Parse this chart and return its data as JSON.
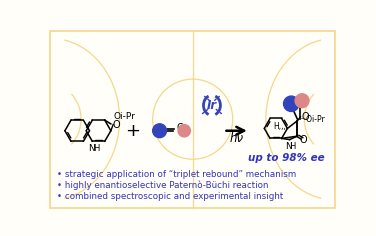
{
  "bg_color": "#fffef8",
  "basketball_color": "#f5d78e",
  "blue_color": "#3344bb",
  "pink_color": "#dd8888",
  "arrow_color": "#111111",
  "text_blue": "#3333bb",
  "bullet_points": [
    "• strategic application of “triplet rebound” mechanism",
    "• highly enantioselective Paternò-Büchi reaction",
    "• combined spectroscopic and experimental insight"
  ],
  "up_to_text": "up to 98% ee",
  "hv_text": "hν",
  "figsize": [
    3.76,
    2.36
  ],
  "dpi": 100
}
